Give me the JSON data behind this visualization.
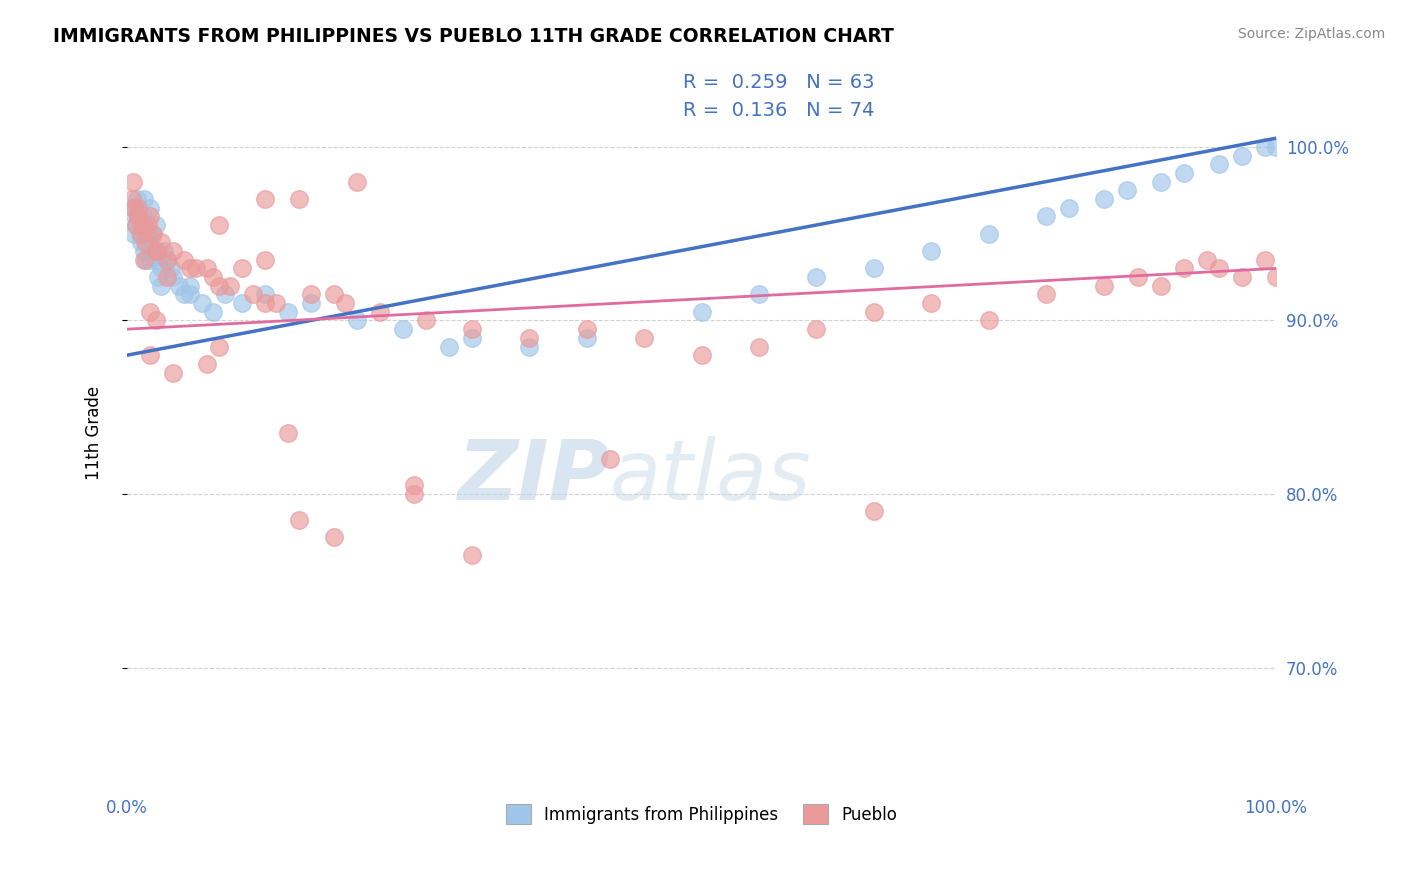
{
  "title": "IMMIGRANTS FROM PHILIPPINES VS PUEBLO 11TH GRADE CORRELATION CHART",
  "source_text": "Source: ZipAtlas.com",
  "ylabel": "11th Grade",
  "xlim": [
    0.0,
    100.0
  ],
  "ylim": [
    63.0,
    104.0
  ],
  "yticks": [
    70.0,
    80.0,
    90.0,
    100.0
  ],
  "blue_color": "#9fc5e8",
  "pink_color": "#ea9999",
  "blue_line_color": "#4472c4",
  "pink_line_color": "#e06c9f",
  "label1": "Immigrants from Philippines",
  "label2": "Pueblo",
  "blue_x": [
    0.5,
    0.6,
    0.7,
    0.8,
    0.9,
    1.0,
    1.1,
    1.2,
    1.3,
    1.4,
    1.5,
    1.6,
    1.7,
    1.8,
    1.9,
    2.0,
    2.1,
    2.2,
    2.3,
    2.5,
    2.7,
    3.0,
    3.2,
    3.5,
    4.0,
    4.5,
    5.0,
    5.5,
    6.5,
    7.5,
    8.5,
    10.0,
    12.0,
    14.0,
    16.0,
    20.0,
    24.0,
    28.0,
    30.0,
    35.0,
    40.0,
    50.0,
    55.0,
    60.0,
    65.0,
    70.0,
    75.0,
    80.0,
    82.0,
    85.0,
    87.0,
    90.0,
    92.0,
    95.0,
    97.0,
    99.0,
    100.0,
    1.5,
    2.0,
    2.5,
    3.0,
    3.8,
    5.5
  ],
  "blue_y": [
    96.5,
    95.0,
    96.0,
    95.5,
    97.0,
    96.0,
    95.0,
    94.5,
    95.5,
    96.0,
    94.0,
    95.0,
    93.5,
    95.0,
    94.5,
    93.5,
    94.0,
    95.0,
    94.0,
    93.5,
    92.5,
    93.0,
    94.0,
    93.5,
    92.5,
    92.0,
    91.5,
    92.0,
    91.0,
    90.5,
    91.5,
    91.0,
    91.5,
    90.5,
    91.0,
    90.0,
    89.5,
    88.5,
    89.0,
    88.5,
    89.0,
    90.5,
    91.5,
    92.5,
    93.0,
    94.0,
    95.0,
    96.0,
    96.5,
    97.0,
    97.5,
    98.0,
    98.5,
    99.0,
    99.5,
    100.0,
    100.0,
    97.0,
    96.5,
    95.5,
    92.0,
    93.0,
    91.5
  ],
  "pink_x": [
    0.4,
    0.6,
    0.8,
    1.0,
    1.2,
    1.4,
    1.6,
    1.8,
    2.0,
    2.3,
    2.6,
    3.0,
    3.5,
    4.0,
    5.0,
    6.0,
    7.5,
    9.0,
    11.0,
    13.0,
    16.0,
    19.0,
    22.0,
    26.0,
    30.0,
    35.0,
    40.0,
    45.0,
    50.0,
    55.0,
    60.0,
    65.0,
    70.0,
    75.0,
    80.0,
    85.0,
    88.0,
    90.0,
    92.0,
    94.0,
    95.0,
    97.0,
    99.0,
    100.0,
    0.5,
    1.0,
    2.5,
    3.5,
    5.5,
    8.0,
    12.0,
    18.0,
    8.0,
    12.0,
    15.0,
    20.0,
    2.0,
    4.0,
    7.0,
    14.0,
    25.0,
    30.0,
    12.0,
    15.0,
    2.0,
    1.5,
    18.0,
    2.5,
    8.0,
    10.0,
    7.0,
    25.0,
    42.0,
    65.0
  ],
  "pink_y": [
    97.0,
    96.5,
    95.5,
    96.0,
    95.0,
    95.5,
    94.5,
    95.5,
    96.0,
    95.0,
    94.0,
    94.5,
    93.5,
    94.0,
    93.5,
    93.0,
    92.5,
    92.0,
    91.5,
    91.0,
    91.5,
    91.0,
    90.5,
    90.0,
    89.5,
    89.0,
    89.5,
    89.0,
    88.0,
    88.5,
    89.5,
    90.5,
    91.0,
    90.0,
    91.5,
    92.0,
    92.5,
    92.0,
    93.0,
    93.5,
    93.0,
    92.5,
    93.5,
    92.5,
    98.0,
    96.5,
    94.0,
    92.5,
    93.0,
    92.0,
    93.5,
    91.5,
    95.5,
    97.0,
    97.0,
    98.0,
    88.0,
    87.0,
    87.5,
    83.5,
    80.5,
    76.5,
    91.0,
    78.5,
    90.5,
    93.5,
    77.5,
    90.0,
    88.5,
    93.0,
    93.0,
    80.0,
    82.0,
    79.0
  ],
  "blue_trend": [
    88.0,
    100.5
  ],
  "pink_trend": [
    89.5,
    93.0
  ]
}
